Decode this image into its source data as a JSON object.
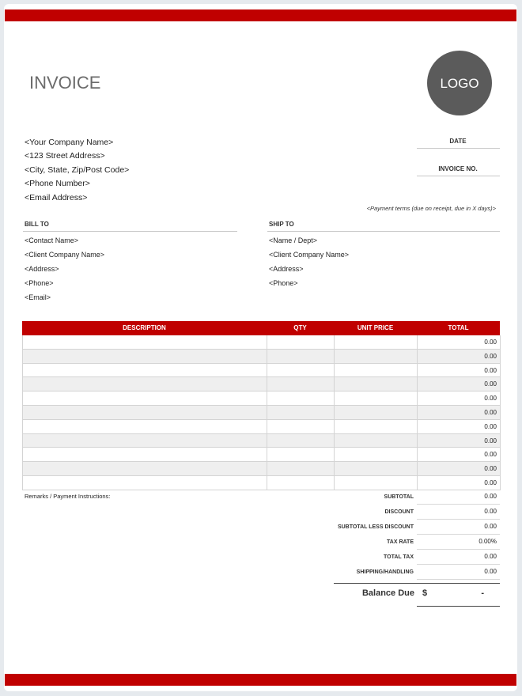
{
  "header": {
    "title": "INVOICE",
    "logo": "LOGO"
  },
  "company": [
    "<Your Company Name>",
    "<123 Street Address>",
    "<City, State, Zip/Post Code>",
    "<Phone Number>",
    "<Email Address>"
  ],
  "meta": {
    "date": "DATE",
    "invoice_no": "INVOICE NO."
  },
  "payment_terms": "<Payment terms (due on receipt, due in X days)>",
  "bill_to": {
    "heading": "BILL TO",
    "lines": [
      "<Contact Name>",
      "<Client Company Name>",
      "<Address>",
      "<Phone>",
      "<Email>"
    ]
  },
  "ship_to": {
    "heading": "SHIP TO",
    "lines": [
      "<Name / Dept>",
      "<Client Company Name>",
      "<Address>",
      "<Phone>"
    ]
  },
  "table": {
    "headers": [
      "DESCRIPTION",
      "QTY",
      "UNIT PRICE",
      "TOTAL"
    ],
    "totals": [
      "0.00",
      "0.00",
      "0.00",
      "0.00",
      "0.00",
      "0.00",
      "0.00",
      "0.00",
      "0.00",
      "0.00",
      "0.00"
    ]
  },
  "remarks": "Remarks / Payment Instructions:",
  "summary": [
    {
      "label": "SUBTOTAL",
      "value": "0.00"
    },
    {
      "label": "DISCOUNT",
      "value": "0.00"
    },
    {
      "label": "SUBTOTAL LESS DISCOUNT",
      "value": "0.00"
    },
    {
      "label": "TAX RATE",
      "value": "0.00%"
    },
    {
      "label": "TOTAL TAX",
      "value": "0.00"
    },
    {
      "label": "SHIPPING/HANDLING",
      "value": "0.00"
    }
  ],
  "balance": {
    "label": "Balance Due",
    "currency": "$",
    "value": "-"
  }
}
